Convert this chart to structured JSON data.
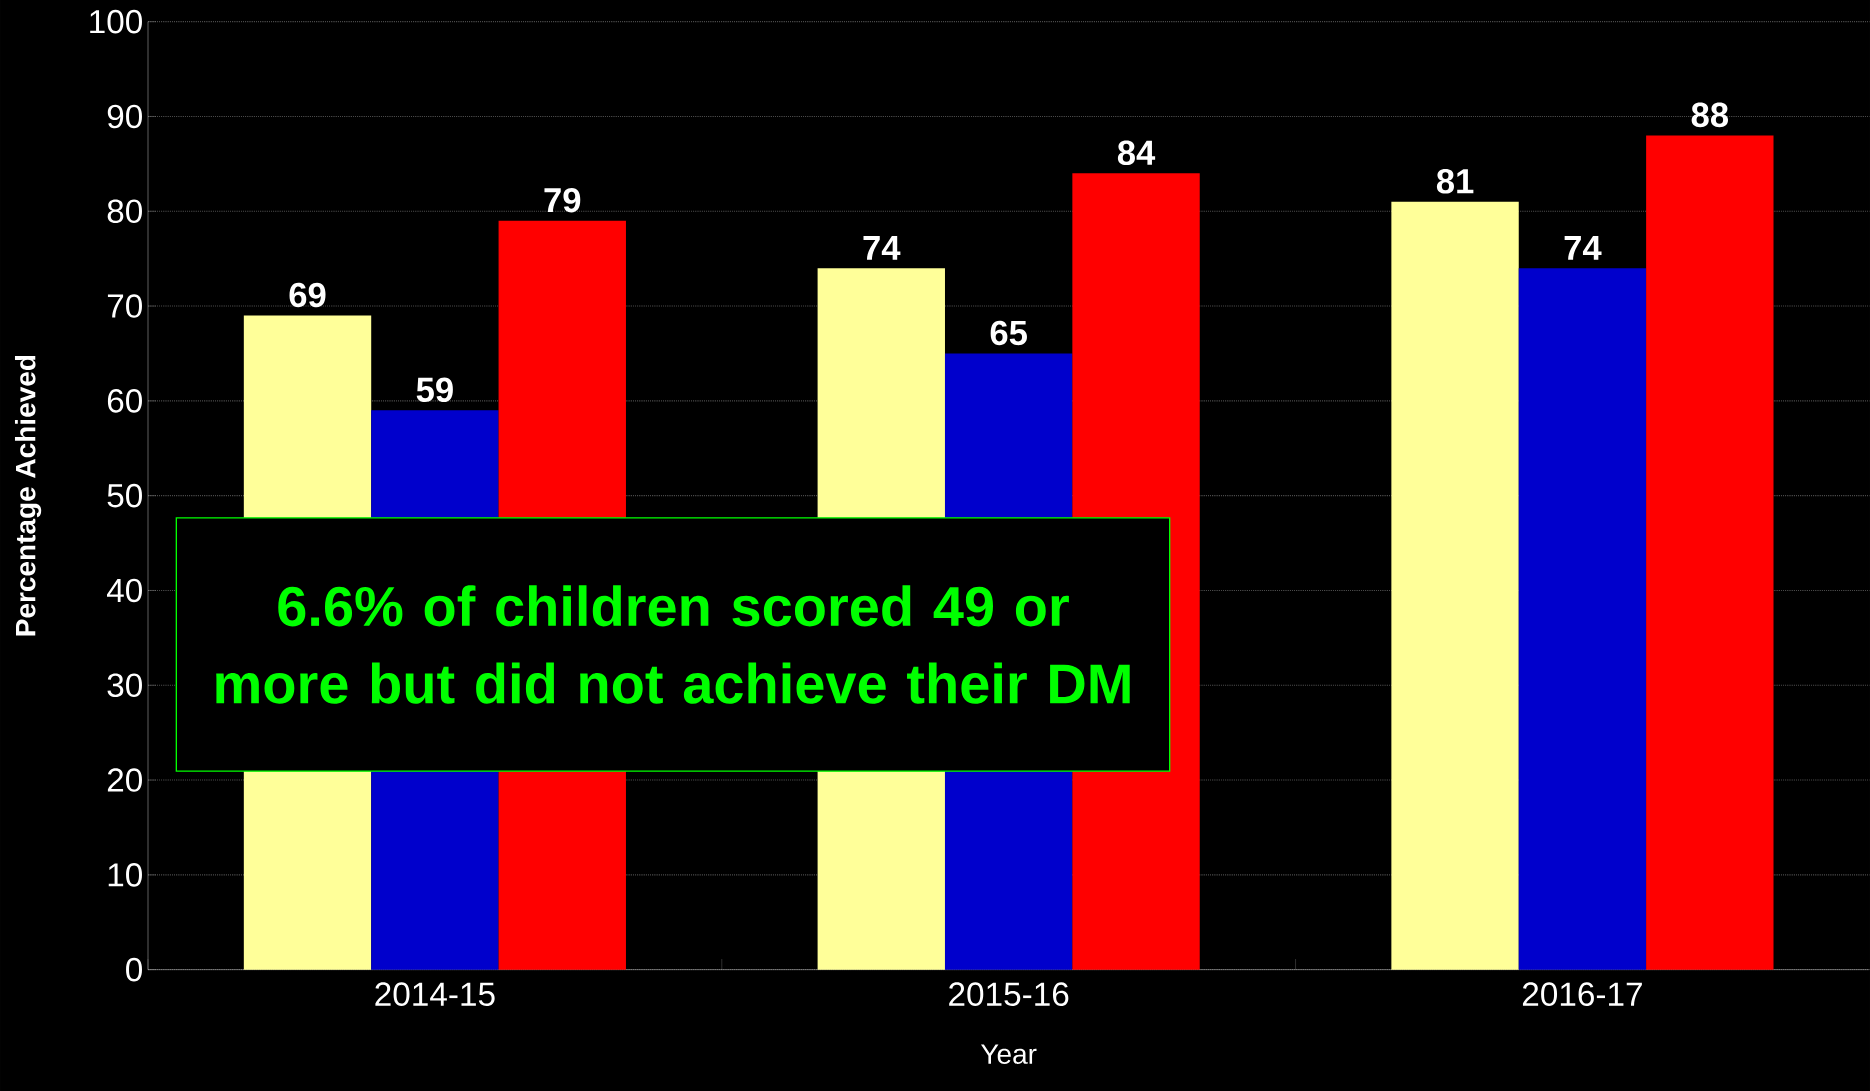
{
  "chart_data": {
    "type": "bar",
    "xlabel": "Year",
    "ylabel": "Percentage Achieved",
    "categories": [
      "2014-15",
      "2015-16",
      "2016-17"
    ],
    "series": [
      {
        "color": "#ffff99",
        "values": [
          69,
          74,
          81
        ]
      },
      {
        "color": "#0000cc",
        "values": [
          59,
          65,
          74
        ]
      },
      {
        "color": "#ff0000",
        "values": [
          79,
          84,
          88
        ]
      }
    ],
    "ylim": [
      0,
      100
    ],
    "yticks": [
      0,
      10,
      20,
      30,
      40,
      50,
      60,
      70,
      80,
      90,
      100
    ],
    "grid": "y",
    "data_labels": true,
    "annotations": [
      "6.6% of children scored 49 or more but did not achieve their DM"
    ]
  }
}
